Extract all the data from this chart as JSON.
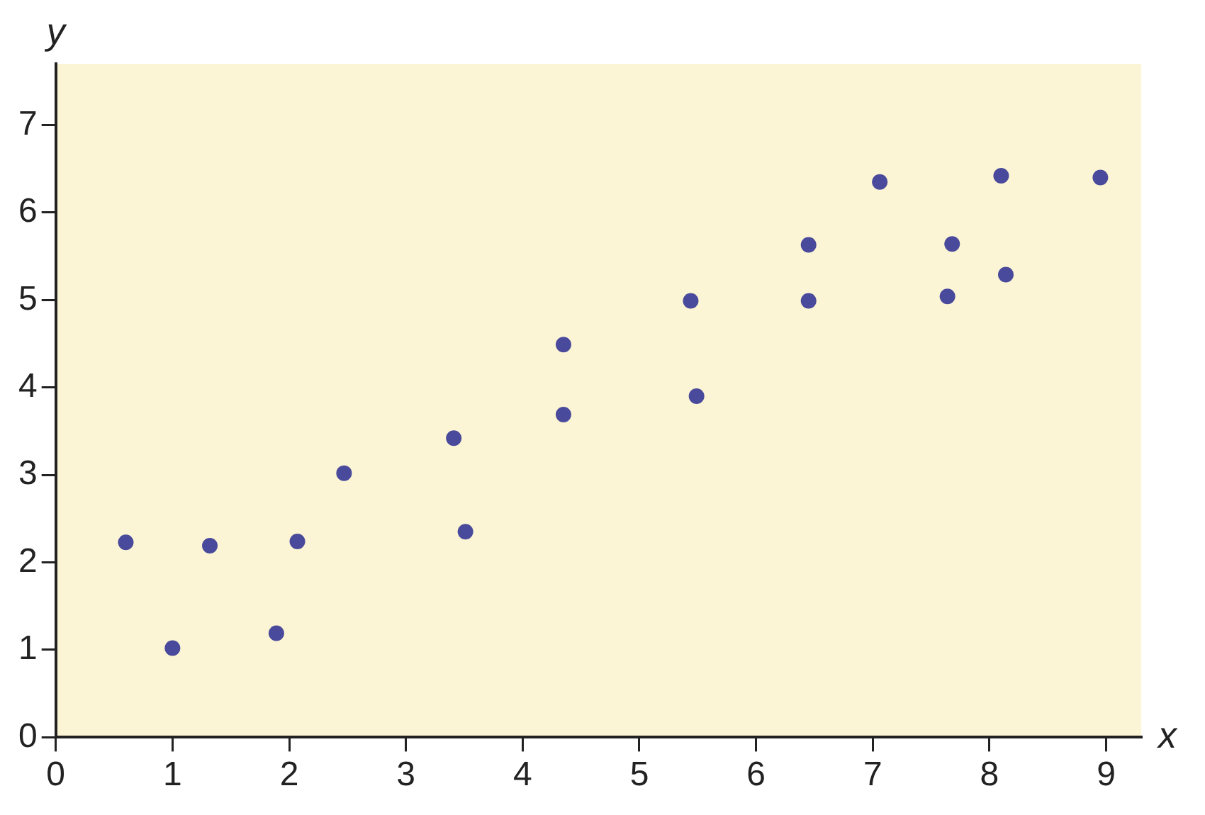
{
  "chart_data": {
    "type": "scatter",
    "xlabel": "x",
    "ylabel": "y",
    "xlim": [
      0,
      9.3
    ],
    "ylim": [
      0,
      7.7
    ],
    "xticks": [
      0,
      1,
      2,
      3,
      4,
      5,
      6,
      7,
      8,
      9
    ],
    "yticks": [
      0,
      1,
      2,
      3,
      4,
      5,
      6,
      7
    ],
    "grid": false,
    "legend": false,
    "marker": "circle",
    "series": [
      {
        "color": "#4a4a9c",
        "x": [
          0.6,
          1.0,
          1.32,
          1.89,
          2.07,
          2.47,
          3.41,
          3.51,
          4.35,
          4.35,
          5.44,
          5.49,
          6.45,
          6.45,
          7.06,
          7.64,
          7.68,
          8.1,
          8.14,
          8.95
        ],
        "values": [
          2.23,
          1.02,
          2.19,
          1.19,
          2.24,
          3.02,
          3.42,
          2.35,
          4.49,
          3.69,
          4.99,
          3.9,
          5.63,
          4.99,
          6.35,
          5.04,
          5.64,
          6.42,
          5.29,
          6.4
        ]
      }
    ]
  }
}
